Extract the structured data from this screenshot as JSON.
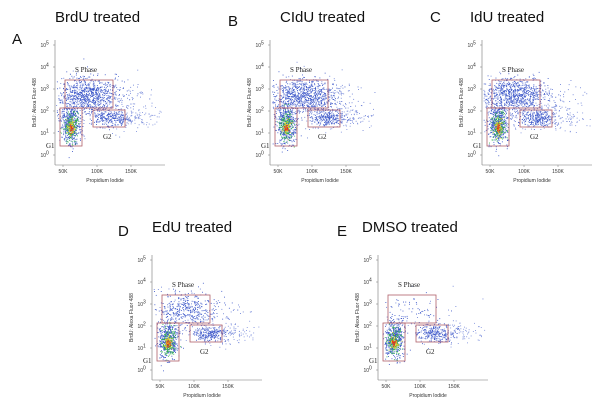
{
  "panels": [
    {
      "letter": "A",
      "title": "BrdU  treated"
    },
    {
      "letter": "B",
      "title": "CIdU  treated"
    },
    {
      "letter": "C",
      "title": "IdU treated"
    },
    {
      "letter": "D",
      "title": "EdU  treated"
    },
    {
      "letter": "E",
      "title": "DMSO treated"
    }
  ],
  "x_axis_label": "Propidium Iodide",
  "y_axis_label": "BrdU: Alexa Fluor 488",
  "x_ticks": [
    "50K",
    "100K",
    "150K"
  ],
  "y_ticks": [
    {
      "base": "10",
      "exp": "0"
    },
    {
      "base": "10",
      "exp": "1"
    },
    {
      "base": "10",
      "exp": "2"
    },
    {
      "base": "10",
      "exp": "3"
    },
    {
      "base": "10",
      "exp": "4"
    },
    {
      "base": "10",
      "exp": "5"
    }
  ],
  "gates": [
    "S Phase",
    "G1",
    "G2"
  ]
}
